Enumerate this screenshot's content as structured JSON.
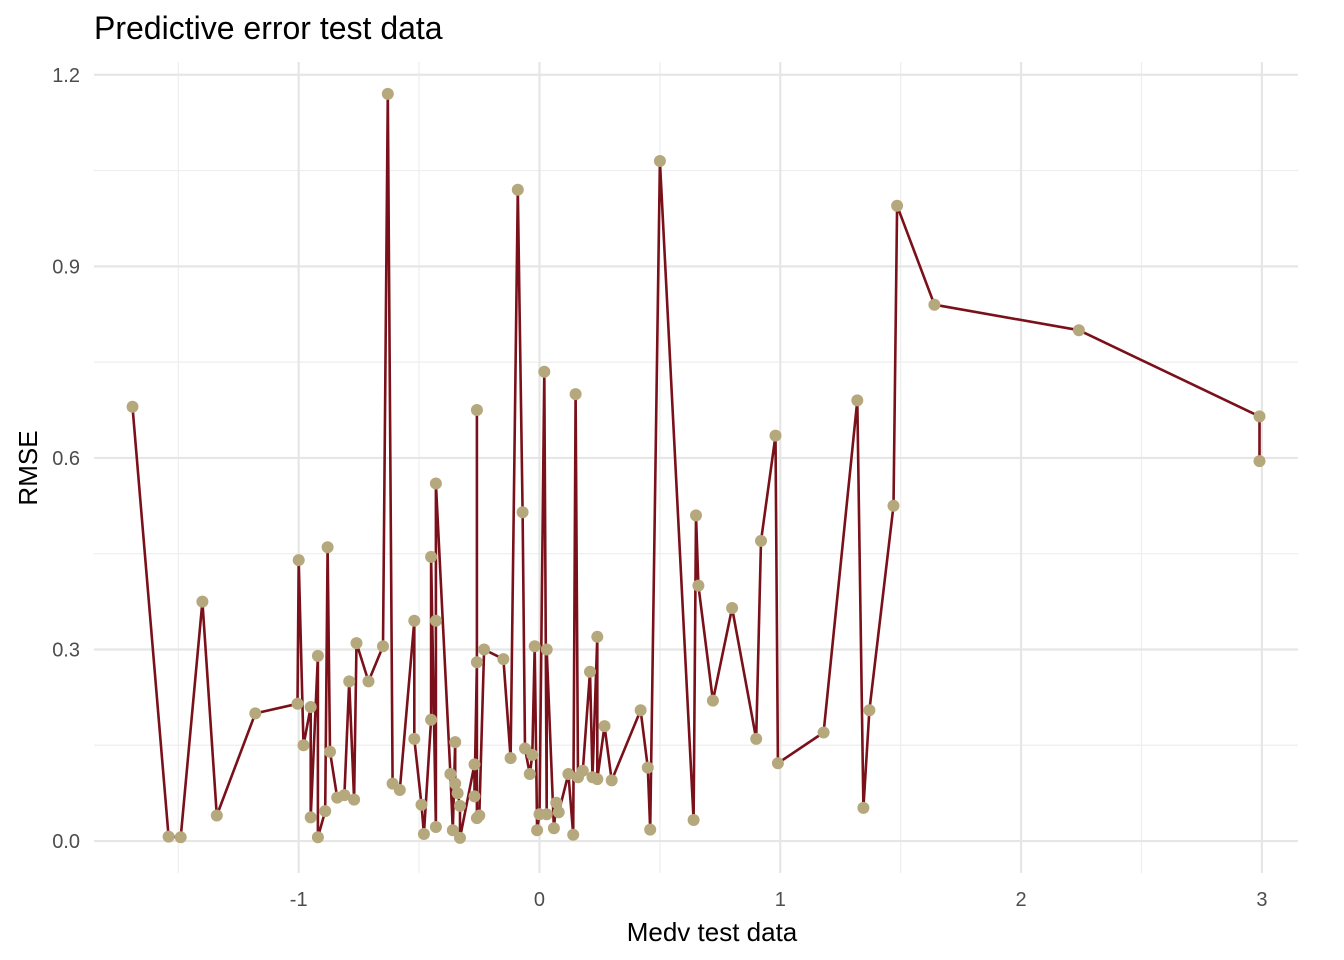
{
  "chart_data": {
    "type": "line",
    "title": "Predictive error test data",
    "xlabel": "Medv test data",
    "ylabel": "RMSE",
    "xlim": [
      -1.85,
      3.15
    ],
    "ylim": [
      -0.05,
      1.22
    ],
    "x_ticks": [
      -1,
      0,
      1,
      2,
      3
    ],
    "x_tick_labels": [
      "-1",
      "0",
      "1",
      "2",
      "3"
    ],
    "y_ticks": [
      0.0,
      0.3,
      0.6,
      0.9,
      1.2
    ],
    "y_tick_labels": [
      "0.0",
      "0.3",
      "0.6",
      "0.9",
      "1.2"
    ],
    "grid": true,
    "colors": {
      "line": "#7a1019",
      "point": "#b5a87c",
      "grid": "#e6e6e6"
    },
    "series": [
      {
        "points": [
          [
            -1.69,
            0.68
          ],
          [
            -1.54,
            0.007
          ],
          [
            -1.49,
            0.006
          ],
          [
            -1.4,
            0.375
          ],
          [
            -1.34,
            0.04
          ],
          [
            -1.18,
            0.2
          ],
          [
            -1.005,
            0.215
          ],
          [
            -1.0,
            0.44
          ],
          [
            -0.98,
            0.15
          ],
          [
            -0.95,
            0.21
          ],
          [
            -0.95,
            0.037
          ],
          [
            -0.92,
            0.29
          ],
          [
            -0.92,
            0.006
          ],
          [
            -0.89,
            0.047
          ],
          [
            -0.88,
            0.46
          ],
          [
            -0.87,
            0.14
          ],
          [
            -0.84,
            0.068
          ],
          [
            -0.81,
            0.072
          ],
          [
            -0.79,
            0.25
          ],
          [
            -0.77,
            0.065
          ],
          [
            -0.76,
            0.31
          ],
          [
            -0.71,
            0.25
          ],
          [
            -0.65,
            0.305
          ],
          [
            -0.63,
            1.17
          ],
          [
            -0.61,
            0.09
          ],
          [
            -0.58,
            0.08
          ],
          [
            -0.52,
            0.345
          ],
          [
            -0.52,
            0.16
          ],
          [
            -0.49,
            0.057
          ],
          [
            -0.48,
            0.011
          ],
          [
            -0.45,
            0.19
          ],
          [
            -0.45,
            0.445
          ],
          [
            -0.43,
            0.022
          ],
          [
            -0.43,
            0.345
          ],
          [
            -0.43,
            0.56
          ],
          [
            -0.37,
            0.105
          ],
          [
            -0.36,
            0.017
          ],
          [
            -0.35,
            0.155
          ],
          [
            -0.35,
            0.09
          ],
          [
            -0.34,
            0.075
          ],
          [
            -0.33,
            0.055
          ],
          [
            -0.33,
            0.005
          ],
          [
            -0.27,
            0.12
          ],
          [
            -0.27,
            0.07
          ],
          [
            -0.26,
            0.28
          ],
          [
            -0.26,
            0.675
          ],
          [
            -0.26,
            0.036
          ],
          [
            -0.25,
            0.04
          ],
          [
            -0.23,
            0.3
          ],
          [
            -0.15,
            0.285
          ],
          [
            -0.12,
            0.13
          ],
          [
            -0.09,
            1.02
          ],
          [
            -0.07,
            0.515
          ],
          [
            -0.06,
            0.145
          ],
          [
            -0.04,
            0.105
          ],
          [
            -0.03,
            0.135
          ],
          [
            -0.02,
            0.305
          ],
          [
            -0.01,
            0.017
          ],
          [
            0.0,
            0.042
          ],
          [
            0.02,
            0.735
          ],
          [
            0.03,
            0.042
          ],
          [
            0.03,
            0.3
          ],
          [
            0.06,
            0.02
          ],
          [
            0.07,
            0.06
          ],
          [
            0.08,
            0.045
          ],
          [
            0.12,
            0.105
          ],
          [
            0.14,
            0.01
          ],
          [
            0.15,
            0.7
          ],
          [
            0.16,
            0.1
          ],
          [
            0.18,
            0.11
          ],
          [
            0.21,
            0.265
          ],
          [
            0.22,
            0.1
          ],
          [
            0.24,
            0.32
          ],
          [
            0.24,
            0.097
          ],
          [
            0.27,
            0.18
          ],
          [
            0.3,
            0.095
          ],
          [
            0.42,
            0.205
          ],
          [
            0.45,
            0.115
          ],
          [
            0.46,
            0.018
          ],
          [
            0.5,
            1.065
          ],
          [
            0.64,
            0.033
          ],
          [
            0.65,
            0.51
          ],
          [
            0.66,
            0.4
          ],
          [
            0.72,
            0.22
          ],
          [
            0.8,
            0.365
          ],
          [
            0.9,
            0.16
          ],
          [
            0.92,
            0.47
          ],
          [
            0.98,
            0.635
          ],
          [
            0.99,
            0.122
          ],
          [
            1.18,
            0.17
          ],
          [
            1.32,
            0.69
          ],
          [
            1.345,
            0.052
          ],
          [
            1.37,
            0.205
          ],
          [
            1.47,
            0.525
          ],
          [
            1.485,
            0.995
          ],
          [
            1.64,
            0.84
          ],
          [
            2.24,
            0.8
          ],
          [
            2.99,
            0.665
          ],
          [
            2.99,
            0.595
          ]
        ]
      }
    ]
  }
}
